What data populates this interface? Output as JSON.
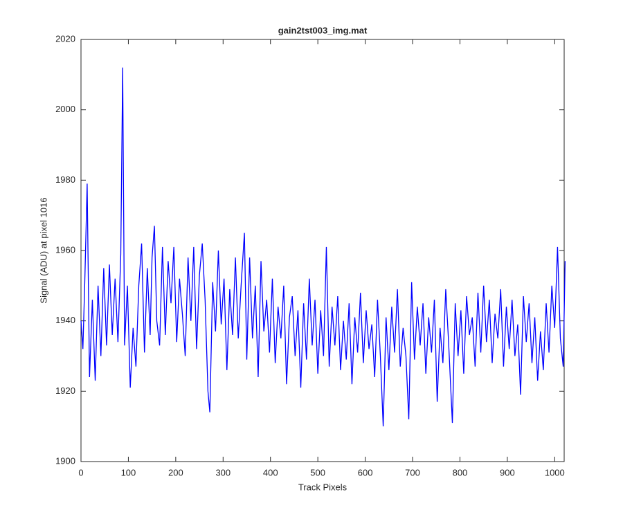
{
  "chart_data": {
    "type": "line",
    "title": "gain2tst003_img.mat",
    "x_label": "Track Pixels",
    "y_label": "Signal (ADU) at pixel 1016",
    "xlim": [
      0,
      1020
    ],
    "ylim": [
      1900,
      2020
    ],
    "xticks": [
      0,
      100,
      200,
      300,
      400,
      500,
      600,
      700,
      800,
      900,
      1000
    ],
    "yticks": [
      1900,
      1920,
      1940,
      1960,
      1980,
      2000,
      2020
    ],
    "x": [
      0,
      4,
      8,
      13,
      18,
      24,
      30,
      36,
      42,
      48,
      54,
      60,
      66,
      72,
      78,
      84,
      88,
      92,
      98,
      104,
      110,
      116,
      122,
      128,
      134,
      140,
      146,
      150,
      155,
      160,
      166,
      172,
      178,
      184,
      190,
      196,
      202,
      208,
      214,
      220,
      226,
      232,
      238,
      244,
      250,
      256,
      262,
      268,
      272,
      278,
      284,
      290,
      296,
      302,
      308,
      314,
      320,
      326,
      332,
      338,
      345,
      350,
      356,
      362,
      368,
      374,
      380,
      386,
      392,
      398,
      404,
      410,
      416,
      422,
      428,
      434,
      440,
      446,
      452,
      458,
      464,
      470,
      476,
      482,
      488,
      494,
      500,
      506,
      512,
      518,
      524,
      530,
      536,
      542,
      548,
      554,
      560,
      566,
      572,
      578,
      584,
      590,
      596,
      602,
      608,
      614,
      620,
      626,
      632,
      638,
      644,
      650,
      656,
      662,
      668,
      674,
      680,
      686,
      692,
      698,
      704,
      710,
      716,
      722,
      728,
      734,
      740,
      746,
      752,
      758,
      764,
      770,
      776,
      784,
      790,
      796,
      802,
      808,
      814,
      820,
      826,
      832,
      838,
      844,
      850,
      856,
      862,
      868,
      874,
      880,
      886,
      892,
      898,
      904,
      910,
      916,
      922,
      928,
      934,
      940,
      946,
      952,
      958,
      964,
      970,
      976,
      982,
      988,
      994,
      1000,
      1006,
      1012,
      1018,
      1022
    ],
    "series": [
      {
        "color": "#0000ff",
        "values": [
          1940,
          1932,
          1951,
          1979,
          1924,
          1946,
          1923,
          1950,
          1930,
          1955,
          1933,
          1956,
          1936,
          1952,
          1934,
          1959,
          2012,
          1933,
          1950,
          1921,
          1938,
          1927,
          1950,
          1962,
          1931,
          1955,
          1936,
          1958,
          1967,
          1940,
          1933,
          1961,
          1936,
          1957,
          1945,
          1961,
          1934,
          1952,
          1942,
          1930,
          1958,
          1940,
          1961,
          1932,
          1953,
          1962,
          1946,
          1920,
          1914,
          1951,
          1937,
          1960,
          1939,
          1952,
          1926,
          1949,
          1936,
          1958,
          1935,
          1950,
          1965,
          1929,
          1958,
          1935,
          1950,
          1924,
          1957,
          1937,
          1946,
          1931,
          1952,
          1928,
          1944,
          1935,
          1950,
          1922,
          1941,
          1947,
          1930,
          1943,
          1921,
          1945,
          1929,
          1952,
          1933,
          1946,
          1925,
          1943,
          1930,
          1961,
          1927,
          1944,
          1933,
          1947,
          1926,
          1940,
          1929,
          1945,
          1922,
          1941,
          1931,
          1948,
          1928,
          1943,
          1932,
          1939,
          1924,
          1946,
          1930,
          1910,
          1941,
          1926,
          1944,
          1931,
          1949,
          1927,
          1938,
          1930,
          1912,
          1951,
          1929,
          1944,
          1933,
          1945,
          1925,
          1941,
          1931,
          1946,
          1917,
          1938,
          1928,
          1949,
          1934,
          1911,
          1945,
          1930,
          1943,
          1925,
          1947,
          1936,
          1941,
          1927,
          1948,
          1931,
          1950,
          1934,
          1946,
          1928,
          1942,
          1935,
          1949,
          1927,
          1944,
          1932,
          1946,
          1930,
          1939,
          1919,
          1947,
          1934,
          1945,
          1928,
          1941,
          1923,
          1937,
          1926,
          1945,
          1931,
          1950,
          1938,
          1961,
          1935,
          1927,
          1957
        ]
      }
    ]
  }
}
